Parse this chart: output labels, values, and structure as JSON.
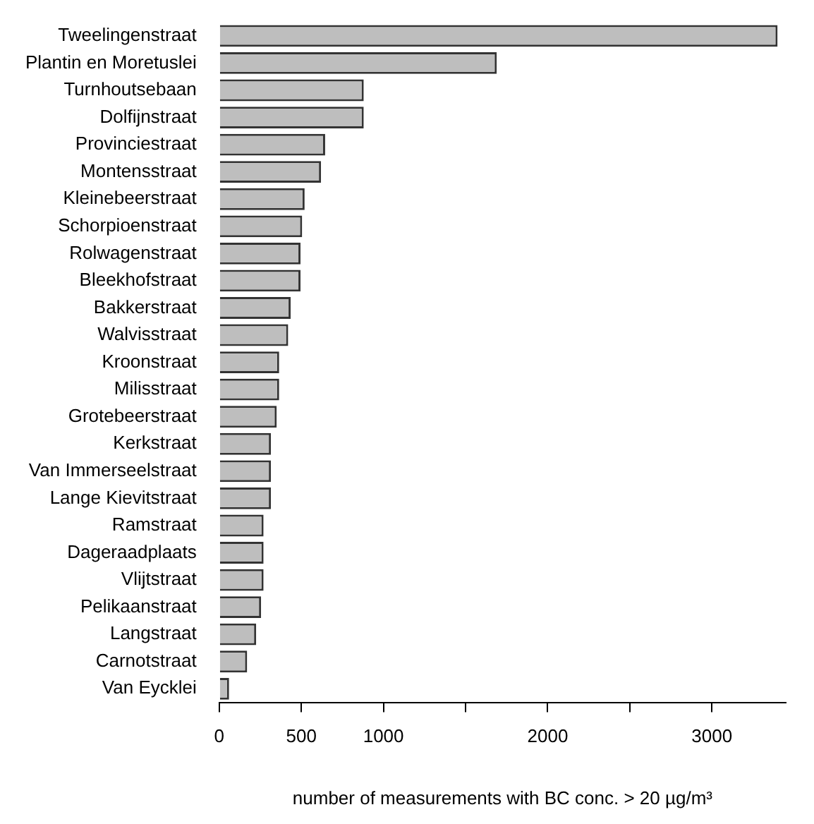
{
  "chart_data": {
    "type": "bar",
    "orientation": "horizontal",
    "xlabel": "number of measurements with BC conc. > 20 µg/m³",
    "categories": [
      "Tweelingenstraat",
      "Plantin en Moretuslei",
      "Turnhoutsebaan",
      "Dolfijnstraat",
      "Provinciestraat",
      "Montensstraat",
      "Kleinebeerstraat",
      "Schorpioenstraat",
      "Rolwagenstraat",
      "Bleekhofstraat",
      "Bakkerstraat",
      "Walvisstraat",
      "Kroonstraat",
      "Milisstraat",
      "Grotebeerstraat",
      "Kerkstraat",
      "Van Immerseelstraat",
      "Lange Kievitstraat",
      "Ramstraat",
      "Dageraadplaats",
      "Vlijtstraat",
      "Pelikaanstraat",
      "Langstraat",
      "Carnotstraat",
      "Van Eycklei"
    ],
    "values": [
      3400,
      1690,
      880,
      880,
      645,
      620,
      520,
      505,
      495,
      495,
      435,
      420,
      365,
      365,
      350,
      315,
      315,
      315,
      270,
      270,
      270,
      255,
      225,
      170,
      60
    ],
    "color": "#bebebe",
    "xlim": [
      0,
      3450
    ],
    "xticks": [
      0,
      500,
      1000,
      {
        "value": 1500,
        "label": null
      },
      2000,
      {
        "value": 2500,
        "label": null
      },
      3000
    ],
    "grid": false
  }
}
